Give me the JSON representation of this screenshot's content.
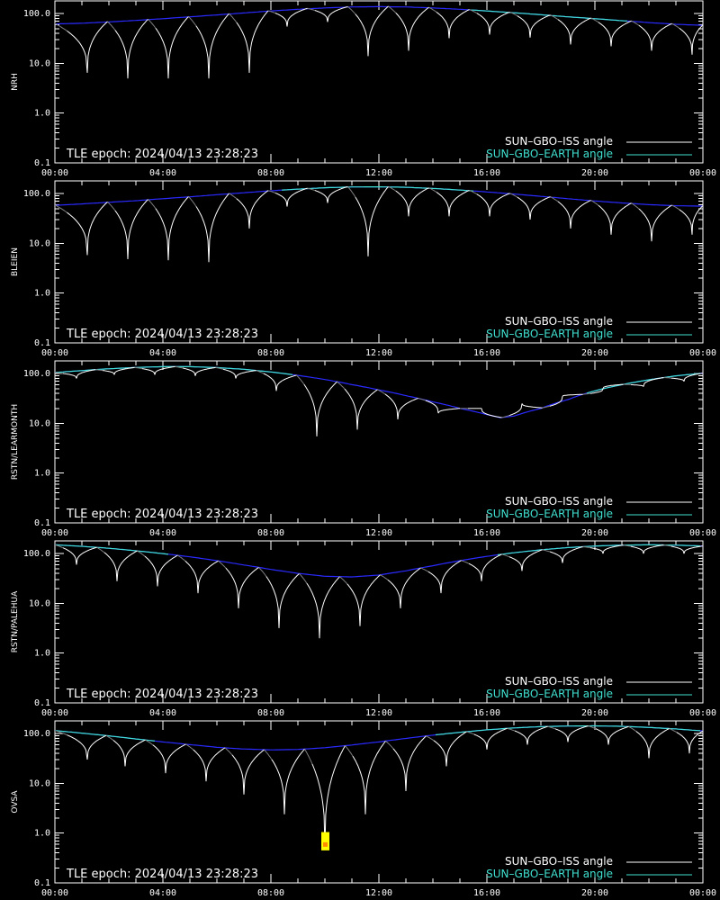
{
  "colors": {
    "background": "#000000",
    "axes": "#ffffff",
    "iss_sunlit": "#ffffff",
    "iss_shadow": "#7f7f7f",
    "earth_visible": "#40e0d0",
    "earth_hidden": "#2a2aff",
    "marker": "#ffff00",
    "marker_core": "#ff8c00"
  },
  "legend": {
    "iss": "SUN–GBO–ISS angle",
    "earth": "SUN–GBO–EARTH angle",
    "position": "bottom-right"
  },
  "epoch_text": "TLE epoch: 2024/04/13 23:28:23",
  "chart_data": [
    {
      "type": "line",
      "ylabel": "NRH",
      "xlim": [
        "00:00",
        "24:00"
      ],
      "ylim": [
        0.1,
        180
      ],
      "yscale": "log",
      "x_tick_labels": [
        "00:00",
        "04:00",
        "08:00",
        "12:00",
        "16:00",
        "20:00",
        "00:00"
      ],
      "y_tick_labels": [
        "0.1",
        "1.0",
        "10.0",
        "100.0"
      ],
      "earth": {
        "x_hours": [
          0,
          1,
          2,
          3,
          4,
          5,
          6,
          7,
          8,
          9,
          10,
          11,
          12,
          13,
          14,
          15,
          16,
          17,
          18,
          19,
          20,
          21,
          22,
          23,
          24
        ],
        "values": [
          62,
          64,
          68,
          73,
          79,
          86,
          94,
          103,
          113,
          122,
          130,
          136,
          138,
          136,
          130,
          122,
          113,
          104,
          95,
          86,
          79,
          72,
          66,
          61,
          58
        ],
        "visible_from_h": 15.3,
        "visible_to_h": 21.3
      },
      "iss_minima": [
        {
          "t": 1.2,
          "v": 6.5
        },
        {
          "t": 2.7,
          "v": 5.0
        },
        {
          "t": 4.2,
          "v": 5.0
        },
        {
          "t": 5.7,
          "v": 5.0
        },
        {
          "t": 7.2,
          "v": 6.5
        },
        {
          "t": 8.6,
          "v": 55
        },
        {
          "t": 10.1,
          "v": 68
        },
        {
          "t": 11.6,
          "v": 14
        },
        {
          "t": 13.1,
          "v": 18
        },
        {
          "t": 14.6,
          "v": 32
        },
        {
          "t": 16.1,
          "v": 38
        },
        {
          "t": 17.6,
          "v": 33
        },
        {
          "t": 19.1,
          "v": 24
        },
        {
          "t": 20.6,
          "v": 22
        },
        {
          "t": 22.1,
          "v": 18
        },
        {
          "t": 23.6,
          "v": 15
        }
      ],
      "iss_peak_ratio": 1.02,
      "iss_shadow_frac": 0.35,
      "marker": null
    },
    {
      "type": "line",
      "ylabel": "BLEIEN",
      "xlim": [
        "00:00",
        "24:00"
      ],
      "ylim": [
        0.1,
        180
      ],
      "yscale": "log",
      "x_tick_labels": [
        "00:00",
        "04:00",
        "08:00",
        "12:00",
        "16:00",
        "20:00",
        "00:00"
      ],
      "y_tick_labels": [
        "0.1",
        "1.0",
        "10.0",
        "100.0"
      ],
      "earth": {
        "x_hours": [
          0,
          1,
          2,
          3,
          4,
          5,
          6,
          7,
          8,
          9,
          10,
          11,
          12,
          13,
          14,
          15,
          16,
          17,
          18,
          19,
          20,
          21,
          22,
          23,
          24
        ],
        "values": [
          58,
          62,
          67,
          72,
          79,
          86,
          95,
          104,
          114,
          123,
          131,
          136,
          137,
          134,
          127,
          118,
          108,
          98,
          88,
          79,
          71,
          65,
          60,
          57,
          56
        ],
        "visible_from_h": 8.3,
        "visible_to_h": 15.5
      },
      "iss_minima": [
        {
          "t": 1.2,
          "v": 5.8
        },
        {
          "t": 2.7,
          "v": 4.8
        },
        {
          "t": 4.2,
          "v": 4.6
        },
        {
          "t": 5.7,
          "v": 4.2
        },
        {
          "t": 7.2,
          "v": 20
        },
        {
          "t": 8.6,
          "v": 55
        },
        {
          "t": 10.1,
          "v": 65
        },
        {
          "t": 11.6,
          "v": 5.5
        },
        {
          "t": 13.1,
          "v": 35
        },
        {
          "t": 14.6,
          "v": 35
        },
        {
          "t": 16.1,
          "v": 35
        },
        {
          "t": 17.6,
          "v": 30
        },
        {
          "t": 19.1,
          "v": 20
        },
        {
          "t": 20.6,
          "v": 15
        },
        {
          "t": 22.1,
          "v": 11
        },
        {
          "t": 23.6,
          "v": 15
        }
      ],
      "iss_peak_ratio": 1.02,
      "iss_shadow_frac": 0.35,
      "marker": null
    },
    {
      "type": "line",
      "ylabel": "RSTN/LEARMONTH",
      "xlim": [
        "00:00",
        "24:00"
      ],
      "ylim": [
        0.1,
        180
      ],
      "yscale": "log",
      "x_tick_labels": [
        "00:00",
        "04:00",
        "08:00",
        "12:00",
        "16:00",
        "20:00",
        "00:00"
      ],
      "y_tick_labels": [
        "0.1",
        "1.0",
        "10.0",
        "100.0"
      ],
      "earth": {
        "x_hours": [
          0,
          1,
          2,
          3,
          4,
          5,
          6,
          7,
          8,
          9,
          10,
          11,
          12,
          13,
          14,
          15,
          16,
          16.5,
          17,
          18,
          19,
          20,
          21,
          22,
          23,
          24
        ],
        "values": [
          105,
          115,
          125,
          133,
          138,
          138,
          132,
          122,
          108,
          92,
          76,
          60,
          47,
          36,
          27,
          20,
          15,
          13,
          14,
          20,
          30,
          45,
          60,
          75,
          90,
          102
        ],
        "visible_from_h": 0,
        "visible_to_h": 8.8,
        "visible2_from_h": 19.7,
        "visible2_to_h": 24
      },
      "iss_minima": [
        {
          "t": 0.8,
          "v": 80
        },
        {
          "t": 2.2,
          "v": 95
        },
        {
          "t": 3.7,
          "v": 95
        },
        {
          "t": 5.2,
          "v": 90
        },
        {
          "t": 6.7,
          "v": 80
        },
        {
          "t": 8.2,
          "v": 45
        },
        {
          "t": 9.7,
          "v": 5.5
        },
        {
          "t": 11.2,
          "v": 7.5
        },
        {
          "t": 12.7,
          "v": 12
        },
        {
          "t": 14.2,
          "v": 16
        },
        {
          "t": 15.8,
          "v": 20
        },
        {
          "t": 17.3,
          "v": 25
        },
        {
          "t": 18.8,
          "v": 35
        },
        {
          "t": 20.3,
          "v": 50
        },
        {
          "t": 21.8,
          "v": 55
        },
        {
          "t": 23.3,
          "v": 70
        }
      ],
      "iss_peak_ratio": 1.0,
      "iss_shadow_frac": 0.35,
      "marker": null
    },
    {
      "type": "line",
      "ylabel": "RSTN/PALEHUA",
      "xlim": [
        "00:00",
        "24:00"
      ],
      "ylim": [
        0.1,
        180
      ],
      "yscale": "log",
      "x_tick_labels": [
        "00:00",
        "04:00",
        "08:00",
        "12:00",
        "16:00",
        "20:00",
        "00:00"
      ],
      "y_tick_labels": [
        "0.1",
        "1.0",
        "10.0",
        "100.0"
      ],
      "earth": {
        "x_hours": [
          0,
          1,
          2,
          3,
          4,
          5,
          6,
          7,
          8,
          9,
          10,
          11,
          12,
          13,
          14,
          15,
          16,
          17,
          18,
          19,
          20,
          21,
          22,
          23,
          24
        ],
        "values": [
          150,
          140,
          128,
          114,
          100,
          86,
          72,
          59,
          48,
          40,
          35,
          34,
          37,
          45,
          57,
          72,
          88,
          104,
          119,
          132,
          142,
          148,
          150,
          148,
          142
        ],
        "visible_from_h": 0,
        "visible_to_h": 4.3,
        "visible2_from_h": 16.3,
        "visible2_to_h": 24
      },
      "iss_minima": [
        {
          "t": 0.8,
          "v": 60
        },
        {
          "t": 2.3,
          "v": 28
        },
        {
          "t": 3.8,
          "v": 22
        },
        {
          "t": 5.3,
          "v": 16
        },
        {
          "t": 6.8,
          "v": 8
        },
        {
          "t": 8.3,
          "v": 3.2
        },
        {
          "t": 9.8,
          "v": 2.0
        },
        {
          "t": 11.3,
          "v": 3.5
        },
        {
          "t": 12.8,
          "v": 8
        },
        {
          "t": 14.3,
          "v": 16
        },
        {
          "t": 15.8,
          "v": 28
        },
        {
          "t": 17.3,
          "v": 45
        },
        {
          "t": 18.8,
          "v": 65
        },
        {
          "t": 20.3,
          "v": 100
        },
        {
          "t": 21.8,
          "v": 100
        },
        {
          "t": 23.3,
          "v": 100
        }
      ],
      "iss_peak_ratio": 1.0,
      "iss_shadow_frac": 0.35,
      "marker": null
    },
    {
      "type": "line",
      "ylabel": "OVSA",
      "xlim": [
        "00:00",
        "24:00"
      ],
      "ylim": [
        0.1,
        180
      ],
      "yscale": "log",
      "x_tick_labels": [
        "00:00",
        "04:00",
        "08:00",
        "12:00",
        "16:00",
        "20:00",
        "00:00"
      ],
      "y_tick_labels": [
        "0.1",
        "1.0",
        "10.0",
        "100.0"
      ],
      "earth": {
        "x_hours": [
          0,
          1,
          2,
          3,
          4,
          5,
          6,
          7,
          8,
          9,
          10,
          11,
          12,
          13,
          14,
          15,
          16,
          17,
          18,
          19,
          20,
          21,
          22,
          23,
          24
        ],
        "values": [
          115,
          102,
          90,
          78,
          68,
          60,
          53,
          49,
          47,
          48,
          52,
          59,
          68,
          80,
          93,
          106,
          119,
          130,
          138,
          142,
          143,
          140,
          133,
          124,
          113
        ],
        "visible_from_h": 0,
        "visible_to_h": 3.8,
        "visible2_from_h": 14.0,
        "visible2_to_h": 24
      },
      "iss_minima": [
        {
          "t": 1.2,
          "v": 30
        },
        {
          "t": 2.6,
          "v": 22
        },
        {
          "t": 4.1,
          "v": 16
        },
        {
          "t": 5.6,
          "v": 11
        },
        {
          "t": 7.0,
          "v": 6.0
        },
        {
          "t": 8.5,
          "v": 2.4
        },
        {
          "t": 10.0,
          "v": 0.5
        },
        {
          "t": 11.5,
          "v": 2.4
        },
        {
          "t": 13.0,
          "v": 7.0
        },
        {
          "t": 14.5,
          "v": 22
        },
        {
          "t": 16.0,
          "v": 48
        },
        {
          "t": 17.5,
          "v": 60
        },
        {
          "t": 19.0,
          "v": 68
        },
        {
          "t": 20.5,
          "v": 60
        },
        {
          "t": 22.0,
          "v": 32
        },
        {
          "t": 23.5,
          "v": 40
        }
      ],
      "iss_peak_ratio": 1.0,
      "iss_shadow_frac": 0.35,
      "marker": {
        "t": 10.0,
        "v_low": 0.45,
        "v_high": 1.05
      }
    }
  ]
}
